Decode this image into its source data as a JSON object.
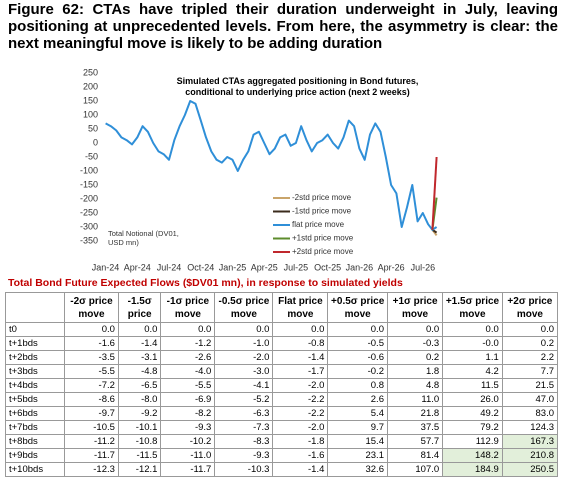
{
  "header": {
    "title": "Figure 62: CTAs have tripled their duration underweight in July, leaving positioning at unprecedented levels. From here, the asymmetry is clear: the next meaningful move is likely to be adding duration"
  },
  "chart_data": {
    "type": "line",
    "title": "Simulated CTAs aggregated positioning in Bond futures, conditional to underlying price action (next 2 weeks)",
    "annotation": "Total Notional (DV01, USD mn)",
    "xlim": [
      -1,
      32
    ],
    "xticks": [
      {
        "value": 0,
        "label": "Jan-24"
      },
      {
        "value": 3,
        "label": "Apr-24"
      },
      {
        "value": 6,
        "label": "Jul-24"
      },
      {
        "value": 9,
        "label": "Oct-24"
      },
      {
        "value": 12,
        "label": "Jan-25"
      },
      {
        "value": 15,
        "label": "Apr-25"
      },
      {
        "value": 18,
        "label": "Jul-25"
      },
      {
        "value": 21,
        "label": "Oct-25"
      },
      {
        "value": 24,
        "label": "Jan-26"
      },
      {
        "value": 27,
        "label": "Apr-26"
      },
      {
        "value": 30,
        "label": "Jul-26"
      }
    ],
    "ylim": [
      -350,
      250
    ],
    "yticks": [
      -350,
      -300,
      -250,
      -200,
      -150,
      -100,
      -50,
      0,
      50,
      100,
      150,
      200,
      250
    ],
    "series": [
      {
        "name": "-2std price move",
        "color": "#c9a46a",
        "x": [
          30.9,
          31.3
        ],
        "values": [
          -310,
          -330
        ]
      },
      {
        "name": "-1std price move",
        "color": "#3b2b1c",
        "x": [
          30.9,
          31.3
        ],
        "values": [
          -310,
          -320
        ]
      },
      {
        "name": "flat price move",
        "color": "#2f8fd8",
        "x": [
          0,
          0.5,
          1,
          1.5,
          2,
          2.5,
          3,
          3.5,
          4,
          4.5,
          5,
          5.5,
          6,
          6.5,
          7,
          7.5,
          8,
          8.5,
          9,
          9.5,
          10,
          10.5,
          11,
          11.5,
          12,
          12.5,
          13,
          13.5,
          14,
          14.5,
          15,
          15.5,
          16,
          16.5,
          17,
          17.5,
          18,
          18.5,
          19,
          19.5,
          20,
          20.5,
          21,
          21.5,
          22,
          22.5,
          23,
          23.5,
          24,
          24.5,
          25,
          25.5,
          26,
          26.5,
          27,
          27.5,
          28,
          28.5,
          29,
          29.5,
          30,
          30.5,
          30.9,
          31.3
        ],
        "values": [
          70,
          60,
          45,
          20,
          10,
          -5,
          20,
          60,
          40,
          0,
          -30,
          -40,
          -60,
          10,
          60,
          100,
          150,
          140,
          80,
          20,
          -30,
          -60,
          -70,
          -50,
          -60,
          -100,
          -60,
          -30,
          30,
          40,
          0,
          -40,
          -20,
          20,
          30,
          -10,
          0,
          60,
          10,
          -30,
          0,
          10,
          30,
          0,
          -20,
          20,
          80,
          60,
          -20,
          -60,
          30,
          70,
          40,
          -50,
          -150,
          -180,
          -300,
          -230,
          -150,
          -280,
          -250,
          -290,
          -310,
          -300
        ]
      },
      {
        "name": "+1std price move",
        "color": "#5d8c2c",
        "x": [
          30.9,
          31.3
        ],
        "values": [
          -310,
          -195
        ]
      },
      {
        "name": "+2std price move",
        "color": "#c0282d",
        "x": [
          30.9,
          31.3
        ],
        "values": [
          -310,
          -50
        ]
      }
    ]
  },
  "table": {
    "title": "Total Bond Future Expected Flows ($DV01 mn), in response to simulated yields",
    "columns": [
      "-2σ price move",
      "-1.5σ price",
      "-1σ price move",
      "-0.5σ price move",
      "Flat price move",
      "+0.5σ price move",
      "+1σ price move",
      "+1.5σ price move",
      "+2σ price move"
    ],
    "rows": [
      [
        "t0",
        "0.0",
        "0.0",
        "0.0",
        "0.0",
        "0.0",
        "0.0",
        "0.0",
        "0.0",
        "0.0"
      ],
      [
        "t+1bds",
        "-1.6",
        "-1.4",
        "-1.2",
        "-1.0",
        "-0.8",
        "-0.5",
        "-0.3",
        "-0.0",
        "0.2"
      ],
      [
        "t+2bds",
        "-3.5",
        "-3.1",
        "-2.6",
        "-2.0",
        "-1.4",
        "-0.6",
        "0.2",
        "1.1",
        "2.2"
      ],
      [
        "t+3bds",
        "-5.5",
        "-4.8",
        "-4.0",
        "-3.0",
        "-1.7",
        "-0.2",
        "1.8",
        "4.2",
        "7.7"
      ],
      [
        "t+4bds",
        "-7.2",
        "-6.5",
        "-5.5",
        "-4.1",
        "-2.0",
        "0.8",
        "4.8",
        "11.5",
        "21.5"
      ],
      [
        "t+5bds",
        "-8.6",
        "-8.0",
        "-6.9",
        "-5.2",
        "-2.2",
        "2.6",
        "11.0",
        "26.0",
        "47.0"
      ],
      [
        "t+6bds",
        "-9.7",
        "-9.2",
        "-8.2",
        "-6.3",
        "-2.2",
        "5.4",
        "21.8",
        "49.2",
        "83.0"
      ],
      [
        "t+7bds",
        "-10.5",
        "-10.1",
        "-9.3",
        "-7.3",
        "-2.0",
        "9.7",
        "37.5",
        "79.2",
        "124.3"
      ],
      [
        "t+8bds",
        "-11.2",
        "-10.8",
        "-10.2",
        "-8.3",
        "-1.8",
        "15.4",
        "57.7",
        "112.9",
        "167.3"
      ],
      [
        "t+9bds",
        "-11.7",
        "-11.5",
        "-11.0",
        "-9.3",
        "-1.6",
        "23.1",
        "81.4",
        "148.2",
        "210.8"
      ],
      [
        "t+10bds",
        "-12.3",
        "-12.1",
        "-11.7",
        "-10.3",
        "-1.4",
        "32.6",
        "107.0",
        "184.9",
        "250.5"
      ]
    ]
  }
}
